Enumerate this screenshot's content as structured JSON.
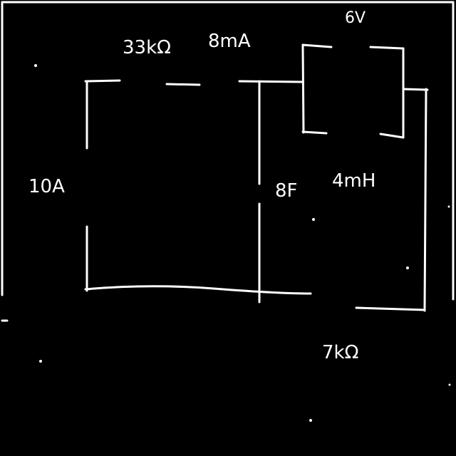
{
  "components": {
    "current_source_10a": "10A",
    "resistor_33k": "33kΩ",
    "current_source_8ma": "8mA",
    "voltage_source_6v": "6V",
    "capacitor_8f": "8F",
    "inductor_4mh": "4mH",
    "resistor_7k": "7kΩ"
  },
  "colors": {
    "background": "#000000",
    "ink": "#ffffff"
  }
}
